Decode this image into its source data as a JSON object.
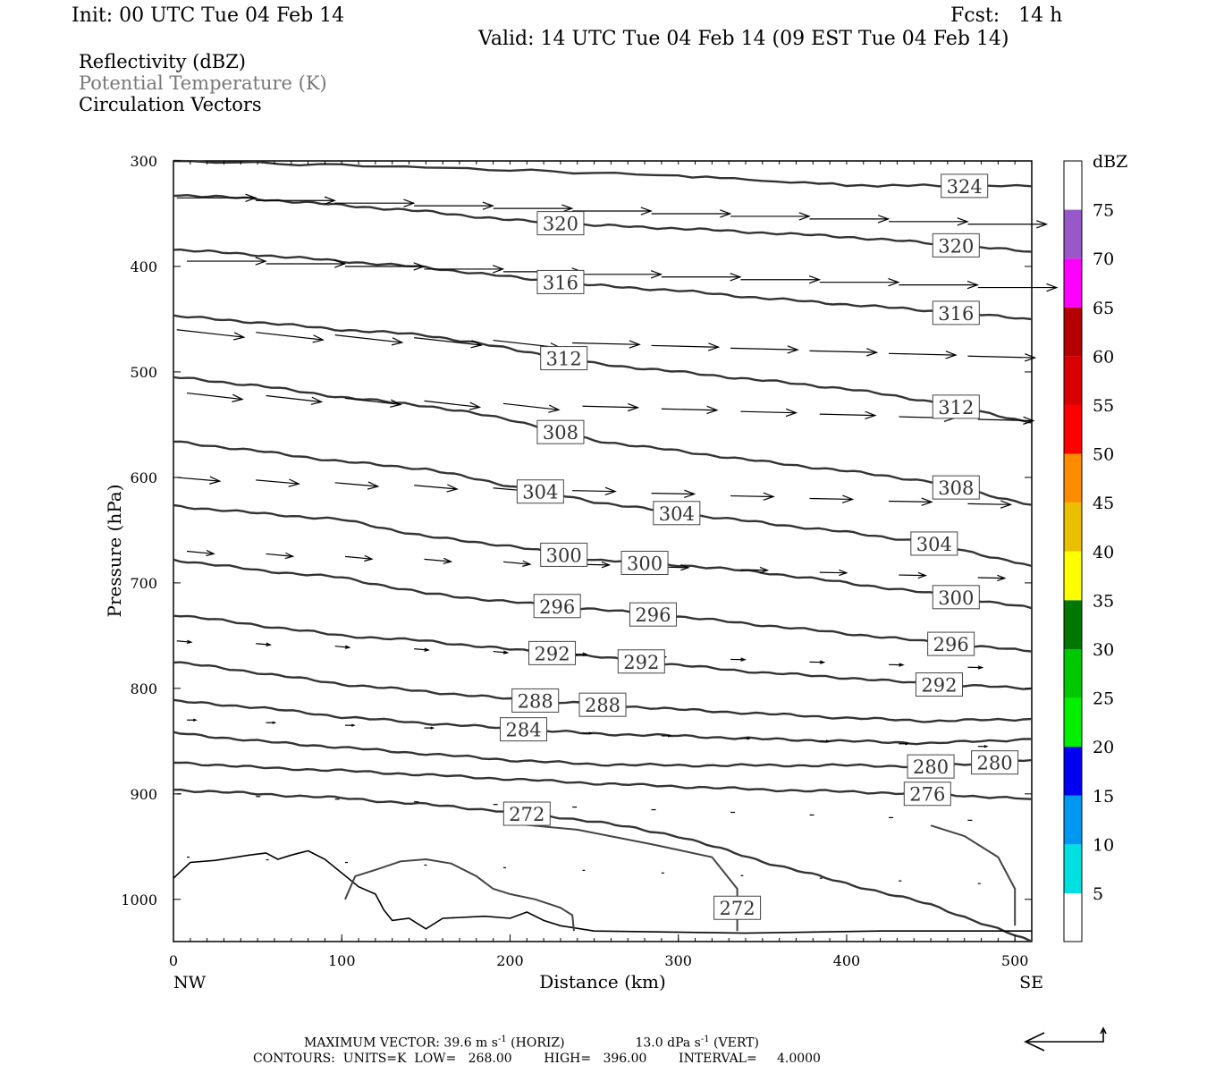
{
  "header": {
    "init": "Init: 00 UTC Tue 04 Feb 14",
    "fcst": "Fcst:   14 h",
    "valid": "Valid: 14 UTC Tue 04 Feb 14 (09 EST Tue 04 Feb 14)"
  },
  "legend": {
    "reflectivity": "Reflectivity (dBZ)",
    "theta": "Potential Temperature (K)",
    "vectors": "Circulation Vectors"
  },
  "colorbar": {
    "unit": "dBZ",
    "labels": [
      "5",
      "10",
      "15",
      "20",
      "25",
      "30",
      "35",
      "40",
      "45",
      "50",
      "55",
      "60",
      "65",
      "70",
      "75"
    ],
    "colors": [
      "#00e0e0",
      "#0098f0",
      "#0000f0",
      "#00f000",
      "#00c800",
      "#007800",
      "#ffff00",
      "#e8c000",
      "#ff8c00",
      "#ff0000",
      "#d80000",
      "#b40000",
      "#ff00ff",
      "#9858c8",
      "#ffffff"
    ]
  },
  "footer": {
    "line1_a": "MAXIMUM VECTOR:  39.6 m s",
    "line1_a_sup": "-1",
    "line1_b": " (HORIZ)",
    "line1_c": "13.0 dPa s",
    "line1_c_sup": "-1",
    "line1_d": " (VERT)",
    "line2": "CONTOURS:  UNITS=K  LOW=   268.00        HIGH=   396.00        INTERVAL=     4.0000"
  },
  "chart_data": {
    "type": "line",
    "title": "",
    "xlabel": "Distance (km)",
    "ylabel": "Pressure (hPa)",
    "xlim": [
      0,
      510
    ],
    "ylim": [
      1040,
      300
    ],
    "x_ticks": [
      "0",
      "100",
      "200",
      "300",
      "400",
      "500"
    ],
    "y_ticks": [
      "300",
      "400",
      "500",
      "600",
      "700",
      "800",
      "900",
      "1000"
    ],
    "x_end_labels": {
      "left": "NW",
      "right": "SE"
    },
    "contour_units": "K",
    "contour_interval": 4,
    "series": [
      {
        "name": "324",
        "x": [
          0,
          150,
          300,
          400,
          510
        ],
        "y": [
          300,
          306,
          314,
          323,
          324
        ]
      },
      {
        "name": "320",
        "x": [
          0,
          50,
          100,
          150,
          200,
          250,
          300,
          350,
          400,
          450,
          510
        ],
        "y": [
          332,
          336,
          342,
          348,
          356,
          361,
          364,
          368,
          372,
          378,
          386
        ]
      },
      {
        "name": "316",
        "x": [
          0,
          50,
          100,
          150,
          200,
          250,
          300,
          350,
          400,
          450,
          510
        ],
        "y": [
          384,
          389,
          395,
          401,
          410,
          418,
          423,
          430,
          436,
          442,
          450
        ]
      },
      {
        "name": "312",
        "x": [
          0,
          50,
          100,
          150,
          200,
          250,
          300,
          350,
          400,
          450,
          510
        ],
        "y": [
          447,
          453,
          460,
          465,
          478,
          492,
          500,
          508,
          516,
          528,
          548
        ]
      },
      {
        "name": "308",
        "x": [
          0,
          50,
          100,
          150,
          200,
          250,
          300,
          350,
          400,
          450,
          510
        ],
        "y": [
          505,
          513,
          524,
          532,
          545,
          565,
          575,
          585,
          594,
          604,
          626
        ]
      },
      {
        "name": "304",
        "x": [
          0,
          50,
          100,
          150,
          200,
          250,
          300,
          350,
          400,
          450,
          510
        ],
        "y": [
          566,
          575,
          585,
          592,
          608,
          623,
          634,
          643,
          652,
          662,
          684
        ]
      },
      {
        "name": "300",
        "x": [
          0,
          50,
          100,
          150,
          200,
          250,
          300,
          350,
          400,
          450,
          510
        ],
        "y": [
          627,
          634,
          640,
          656,
          665,
          678,
          683,
          690,
          700,
          710,
          724
        ]
      },
      {
        "name": "296",
        "x": [
          0,
          50,
          100,
          150,
          200,
          250,
          300,
          350,
          400,
          450,
          510
        ],
        "y": [
          678,
          688,
          695,
          710,
          718,
          725,
          732,
          740,
          748,
          756,
          765
        ]
      },
      {
        "name": "292",
        "x": [
          0,
          50,
          100,
          150,
          200,
          250,
          300,
          350,
          400,
          450,
          510
        ],
        "y": [
          730,
          740,
          750,
          755,
          763,
          770,
          778,
          785,
          790,
          796,
          800
        ]
      },
      {
        "name": "288",
        "x": [
          0,
          50,
          100,
          150,
          200,
          250,
          300,
          350,
          400,
          450,
          510
        ],
        "y": [
          775,
          785,
          796,
          803,
          810,
          815,
          820,
          824,
          828,
          831,
          829
        ]
      },
      {
        "name": "284",
        "x": [
          0,
          50,
          100,
          150,
          200,
          250,
          300,
          350,
          400,
          450,
          510
        ],
        "y": [
          812,
          818,
          827,
          833,
          838,
          843,
          845,
          848,
          850,
          852,
          848
        ]
      },
      {
        "name": "280",
        "x": [
          0,
          50,
          100,
          150,
          200,
          250,
          300,
          350,
          400,
          450,
          510
        ],
        "y": [
          842,
          850,
          856,
          862,
          868,
          872,
          873,
          873,
          873,
          874,
          868
        ]
      },
      {
        "name": "276",
        "x": [
          0,
          50,
          100,
          150,
          200,
          250,
          300,
          350,
          400,
          450,
          510
        ],
        "y": [
          870,
          875,
          878,
          882,
          886,
          890,
          893,
          896,
          898,
          900,
          905
        ]
      },
      {
        "name": "272",
        "x": [
          0,
          50,
          100,
          150,
          200,
          250,
          300,
          350,
          400,
          450,
          510
        ],
        "y": [
          896,
          900,
          904,
          910,
          917,
          926,
          940,
          964,
          985,
          1005,
          1040
        ]
      }
    ],
    "contour_label_values": [
      "324",
      "320",
      "320",
      "316",
      "316",
      "312",
      "312",
      "308",
      "308",
      "304",
      "304",
      "304",
      "300",
      "300",
      "300",
      "296",
      "296",
      "296",
      "292",
      "292",
      "292",
      "288",
      "288",
      "284",
      "280",
      "280",
      "276",
      "272",
      "272"
    ],
    "max_vector": {
      "horiz_m_s": 39.6,
      "vert_dPa_s": 13.0
    },
    "contour_low": 268.0,
    "contour_high": 396.0
  }
}
